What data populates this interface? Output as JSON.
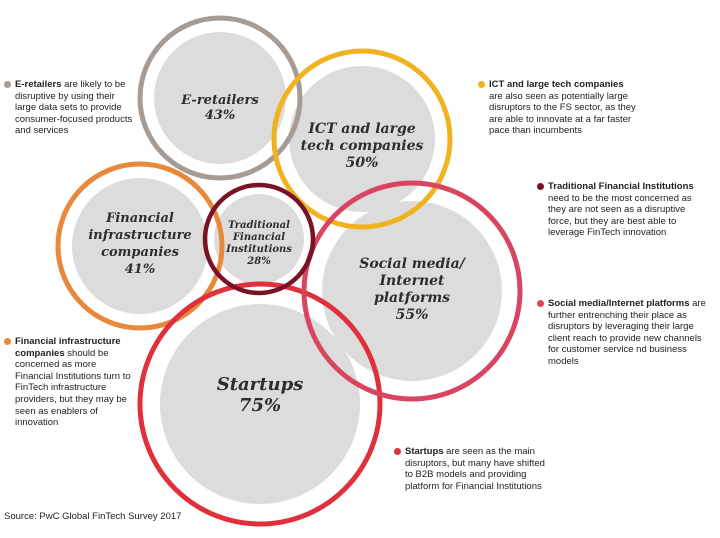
{
  "chart_data": {
    "type": "bubble-venn",
    "circles": [
      {
        "key": "eretailers",
        "label_lines": [
          "E-retailers"
        ],
        "value": "43%",
        "color": "#a59c95"
      },
      {
        "key": "ict",
        "label_lines": [
          "ICT and large",
          "tech companies"
        ],
        "value": "50%",
        "color": "#f0b31f"
      },
      {
        "key": "fin_infra",
        "label_lines": [
          "Financial",
          "infrastructure",
          "companies"
        ],
        "value": "41%",
        "color": "#e8883b"
      },
      {
        "key": "traditional",
        "label_lines": [
          "Traditional",
          "Financial",
          "Institutions"
        ],
        "value": "28%",
        "color": "#7a1226"
      },
      {
        "key": "social",
        "label_lines": [
          "Social media/",
          "Internet",
          "platforms"
        ],
        "value": "55%",
        "color": "#d94560"
      },
      {
        "key": "startups",
        "label_lines": [
          "Startups"
        ],
        "value": "75%",
        "color": "#e0303c"
      }
    ]
  },
  "annotations": {
    "eretailers": {
      "bold": "E-retailers",
      "rest": " are likely to be disruptive by using their large data sets to provide consumer-focused products and services",
      "color": "#a59c95"
    },
    "ict": {
      "bold": "ICT and large tech companies",
      "rest": " are also seen as potentially large disruptors to the FS sector, as they are able to innovate at a far faster pace than incumbents",
      "color": "#f0b31f"
    },
    "traditional": {
      "bold": "Traditional Financial Institutions",
      "rest": " need to be the most concerned as they are not seen as a disruptive force, but they are best able to leverage FinTech innovation",
      "color": "#7a1226"
    },
    "social": {
      "bold": "Social media/Internet platforms",
      "rest": " are further entrenching their place as disruptors by leveraging their large client reach to provide new channels for customer service nd business models",
      "color": "#d94560"
    },
    "fin_infra": {
      "bold": "Financial infrastructure companies",
      "rest": " should be concerned as more Financial Institutions turn to FinTech infrastructure providers, but they may be seen as enablers of innovation",
      "color": "#e8883b"
    },
    "startups": {
      "bold": "Startups",
      "rest": " are seen as the main disruptors, but many have shifted to B2B models and providing platform for Financial Institutions",
      "color": "#e0303c"
    }
  },
  "source": "Source: PwC Global FinTech Survey 2017"
}
